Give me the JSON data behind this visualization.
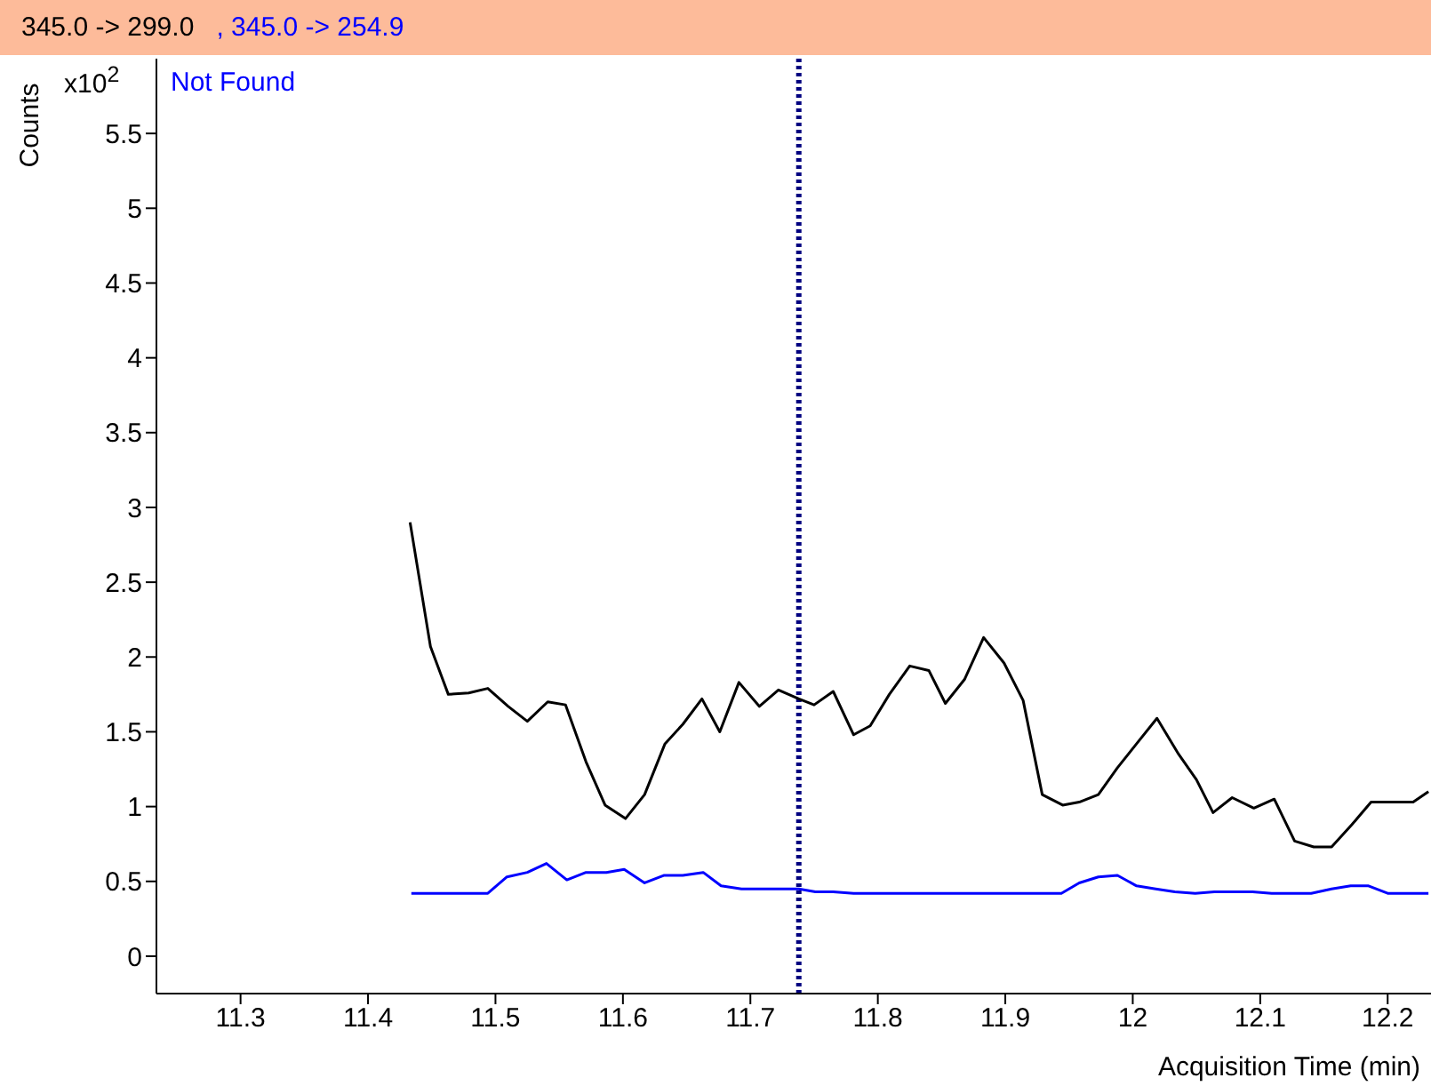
{
  "chart_data": {
    "type": "line",
    "xlabel": "Acquisition Time (min)",
    "ylabel": "Counts",
    "annotations": [
      "x10$^{2}$",
      "Not Found"
    ],
    "xlim": [
      11.234,
      12.234
    ],
    "xticks": [
      11.3,
      11.4,
      11.5,
      11.6,
      11.7,
      11.8,
      11.9,
      12,
      12.1,
      12.2
    ],
    "ylim": [
      -0.25,
      6.0
    ],
    "yticks": [
      0,
      0.5,
      1,
      1.5,
      2,
      2.5,
      3,
      3.5,
      4,
      4.5,
      5,
      5.5
    ],
    "legend": "top",
    "marker": "none",
    "line_style": "solid",
    "ref_lines": [
      {
        "axis": "x",
        "value": 11.738,
        "color": "#000080",
        "line_style": "dotted"
      }
    ],
    "series": [
      {
        "name": "345.0 -> 299.0",
        "color": "#000000",
        "x": [
          11.433,
          11.449,
          11.463,
          11.479,
          11.494,
          11.51,
          11.525,
          11.541,
          11.555,
          11.571,
          11.586,
          11.602,
          11.617,
          11.633,
          11.647,
          11.662,
          11.676,
          11.691,
          11.707,
          11.722,
          11.738,
          11.75,
          11.765,
          11.781,
          11.794,
          11.809,
          11.825,
          11.84,
          11.853,
          11.868,
          11.883,
          11.899,
          11.914,
          11.929,
          11.945,
          11.958,
          11.973,
          11.988,
          12.003,
          12.019,
          12.036,
          12.05,
          12.063,
          12.078,
          12.095,
          12.111,
          12.127,
          12.142,
          12.156,
          12.172,
          12.187,
          12.204,
          12.22,
          12.232
        ],
        "values": [
          2.9,
          2.07,
          1.75,
          1.76,
          1.79,
          1.67,
          1.57,
          1.7,
          1.68,
          1.3,
          1.01,
          0.92,
          1.08,
          1.42,
          1.55,
          1.72,
          1.5,
          1.83,
          1.67,
          1.78,
          1.72,
          1.68,
          1.77,
          1.48,
          1.54,
          1.75,
          1.94,
          1.91,
          1.69,
          1.85,
          2.13,
          1.96,
          1.71,
          1.08,
          1.01,
          1.03,
          1.08,
          1.26,
          1.42,
          1.59,
          1.35,
          1.18,
          0.96,
          1.06,
          0.99,
          1.05,
          0.77,
          0.73,
          0.73,
          0.88,
          1.03,
          1.03,
          1.03,
          1.1
        ]
      },
      {
        "name": ", 345.0 -> 254.9",
        "color": "#0000ff",
        "x": [
          11.434,
          11.494,
          11.509,
          11.525,
          11.54,
          11.556,
          11.571,
          11.587,
          11.601,
          11.617,
          11.632,
          11.647,
          11.663,
          11.677,
          11.693,
          11.738,
          11.751,
          11.765,
          11.781,
          11.944,
          11.958,
          11.973,
          11.988,
          12.003,
          12.018,
          12.033,
          12.049,
          12.064,
          12.094,
          12.109,
          12.14,
          12.156,
          12.171,
          12.185,
          12.2,
          12.232
        ],
        "values": [
          0.42,
          0.42,
          0.53,
          0.56,
          0.62,
          0.51,
          0.56,
          0.56,
          0.58,
          0.49,
          0.54,
          0.54,
          0.56,
          0.47,
          0.45,
          0.45,
          0.43,
          0.43,
          0.42,
          0.42,
          0.49,
          0.53,
          0.54,
          0.47,
          0.45,
          0.43,
          0.42,
          0.43,
          0.43,
          0.42,
          0.42,
          0.45,
          0.47,
          0.47,
          0.42,
          0.42
        ]
      }
    ]
  }
}
